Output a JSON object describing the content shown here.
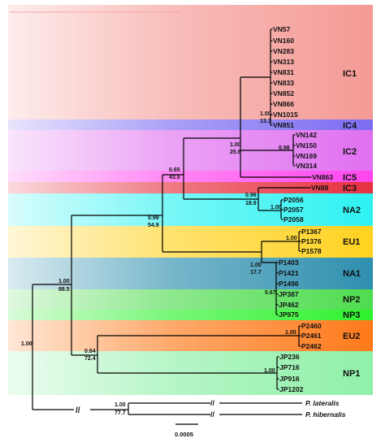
{
  "groups": [
    {
      "label": "IC1",
      "color": "#f59a95"
    },
    {
      "label": "IC4",
      "color": "#7b6cf2"
    },
    {
      "label": "IC2",
      "color": "#e070f0"
    },
    {
      "label": "IC5",
      "color": "#ff45ee"
    },
    {
      "label": "IC3",
      "color": "#e6303f"
    },
    {
      "label": "NA2",
      "color": "#2ef2f2"
    },
    {
      "label": "EU1",
      "color": "#ffd21f"
    },
    {
      "label": "NA1",
      "color": "#2e8fae"
    },
    {
      "label": "NP2",
      "color": "#4fdc4f"
    },
    {
      "label": "NP3",
      "color": "#2ef22e"
    },
    {
      "label": "EU2",
      "color": "#ff7a1a"
    },
    {
      "label": "NP1",
      "color": "#8ff0a8"
    }
  ],
  "taxa": {
    "ic1": [
      "VN57",
      "VN160",
      "VN283",
      "VN313",
      "VN831",
      "VN833",
      "VN852",
      "VN866",
      "VN1015"
    ],
    "ic4": "VN851",
    "ic2": [
      "VN142",
      "VN150",
      "VN169",
      "VN314"
    ],
    "ic5": "VN863",
    "ic3": "VN88",
    "na2": [
      "P2056",
      "P2057",
      "P2058"
    ],
    "eu1": [
      "P1367",
      "P1376",
      "P1578"
    ],
    "na1": [
      "P1403",
      "P1421",
      "P1496"
    ],
    "np2": [
      "JP387",
      "JP462"
    ],
    "np3": "JP975",
    "eu2": [
      "P2460",
      "P2461",
      "P2462"
    ],
    "np1": [
      "JP236",
      "JP716",
      "JP916",
      "JP1202"
    ],
    "outgroup": [
      "P. lateralis",
      "P. hibernalis"
    ]
  },
  "support": {
    "n_ic1_ic4": {
      "pp": "1.00",
      "bs": "13.3"
    },
    "n_ic2": {
      "pp": "0.98"
    },
    "n_ic_core": {
      "pp": "1.00",
      "bs": "25.8"
    },
    "n_ic_all": {
      "pp": "0.65",
      "bs": "43.5"
    },
    "n_na2": {
      "pp": "1.00"
    },
    "n_ic3_na2": {
      "pp": "0.96",
      "bs": "18.9"
    },
    "n_eu1": {
      "pp": "1.00"
    },
    "n_na1_np": {
      "pp": "1.00",
      "bs": "17.7"
    },
    "n_np2_np3": {
      "pp": "0.67"
    },
    "n_upper": {
      "pp": "0.99",
      "bs": "54.9"
    },
    "n_eu2": {
      "pp": "1.00"
    },
    "n_eu2_np1": {
      "pp": "0.64",
      "bs": "72.4"
    },
    "n_np1": {
      "pp": "1.00"
    },
    "n_ingroup": {
      "pp": "1.00",
      "bs": "88.5"
    },
    "n_root": {
      "pp": "1.00"
    },
    "n_outgroup": {
      "pp": "1.00",
      "bs": "77.7"
    }
  },
  "scale_bar": "0.0005",
  "break_mark": "//"
}
